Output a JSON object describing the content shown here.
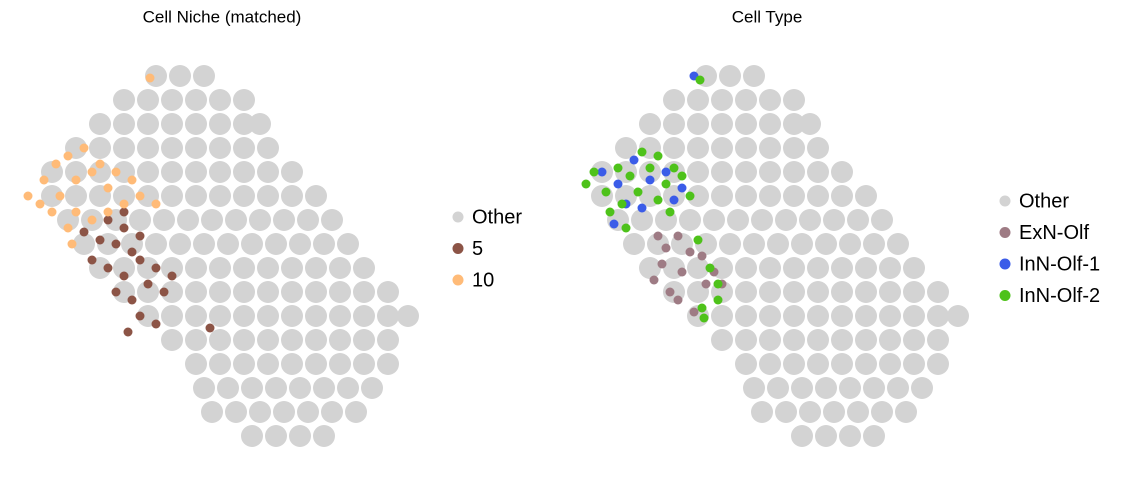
{
  "chart_data": [
    {
      "type": "scatter",
      "title": "Cell Niche (matched)",
      "xlim": [
        0,
        100
      ],
      "ylim": [
        0,
        104
      ],
      "series": [
        {
          "name": "Other",
          "color": "#d3d3d3",
          "x": [
            34,
            40,
            46,
            26,
            32,
            38,
            44,
            50,
            56,
            20,
            26,
            32,
            38,
            44,
            50,
            56,
            60,
            14,
            20,
            26,
            32,
            38,
            44,
            50,
            56,
            62,
            8,
            14,
            20,
            26,
            32,
            38,
            44,
            50,
            56,
            62,
            68,
            8,
            14,
            20,
            26,
            32,
            38,
            44,
            50,
            56,
            62,
            68,
            74,
            12,
            18,
            24,
            30,
            36,
            42,
            48,
            54,
            60,
            66,
            72,
            78,
            16,
            22,
            28,
            34,
            40,
            46,
            52,
            58,
            64,
            70,
            76,
            82,
            20,
            26,
            32,
            38,
            44,
            50,
            56,
            62,
            68,
            74,
            80,
            86,
            26,
            32,
            38,
            44,
            50,
            56,
            62,
            68,
            74,
            80,
            86,
            92,
            32,
            38,
            44,
            50,
            56,
            62,
            68,
            74,
            80,
            86,
            92,
            97,
            38,
            44,
            50,
            56,
            62,
            68,
            74,
            80,
            86,
            92,
            44,
            50,
            56,
            62,
            68,
            74,
            80,
            86,
            92,
            46,
            52,
            58,
            64,
            70,
            76,
            82,
            88,
            48,
            54,
            60,
            66,
            72,
            78,
            84,
            58,
            64,
            70,
            76
          ],
          "y": [
            96,
            96,
            96,
            90,
            90,
            90,
            90,
            90,
            90,
            84,
            84,
            84,
            84,
            84,
            84,
            84,
            84,
            78,
            78,
            78,
            78,
            78,
            78,
            78,
            78,
            78,
            72,
            72,
            72,
            72,
            72,
            72,
            72,
            72,
            72,
            72,
            72,
            66,
            66,
            66,
            66,
            66,
            66,
            66,
            66,
            66,
            66,
            66,
            66,
            60,
            60,
            60,
            60,
            60,
            60,
            60,
            60,
            60,
            60,
            60,
            60,
            54,
            54,
            54,
            54,
            54,
            54,
            54,
            54,
            54,
            54,
            54,
            54,
            48,
            48,
            48,
            48,
            48,
            48,
            48,
            48,
            48,
            48,
            48,
            48,
            42,
            42,
            42,
            42,
            42,
            42,
            42,
            42,
            42,
            42,
            42,
            42,
            36,
            36,
            36,
            36,
            36,
            36,
            36,
            36,
            36,
            36,
            36,
            36,
            30,
            30,
            30,
            30,
            30,
            30,
            30,
            30,
            30,
            30,
            24,
            24,
            24,
            24,
            24,
            24,
            24,
            24,
            24,
            18,
            18,
            18,
            18,
            18,
            18,
            18,
            18,
            12,
            12,
            12,
            12,
            12,
            12,
            12,
            6,
            6,
            6,
            6
          ]
        },
        {
          "name": "5",
          "color": "#8c5446",
          "x": [
            16,
            20,
            22,
            24,
            26,
            28,
            30,
            18,
            22,
            26,
            30,
            34,
            32,
            36,
            38,
            24,
            28,
            30,
            34,
            27,
            47.5,
            26
          ],
          "y": [
            57,
            55,
            60,
            54,
            58,
            52,
            56,
            50,
            48,
            46,
            50,
            48,
            44,
            42,
            46,
            42,
            40,
            36,
            34,
            32,
            33,
            62
          ]
        },
        {
          "name": "10",
          "color": "#ffbb78",
          "x": [
            2,
            6,
            10,
            14,
            18,
            22,
            26,
            30,
            12,
            16,
            20,
            24,
            28,
            14,
            18,
            22,
            12,
            34,
            8,
            13,
            32.5,
            5,
            9
          ],
          "y": [
            66,
            70,
            66,
            70,
            72,
            68,
            64,
            66,
            76,
            78,
            74,
            72,
            70,
            62,
            60,
            62,
            58,
            64,
            62,
            54,
            95.5,
            64,
            74
          ]
        }
      ]
    },
    {
      "type": "scatter",
      "title": "Cell Type",
      "xlim": [
        0,
        100
      ],
      "ylim": [
        0,
        104
      ],
      "series": [
        {
          "name": "Other",
          "color": "#d3d3d3",
          "x": [
            34,
            40,
            46,
            26,
            32,
            38,
            44,
            50,
            56,
            20,
            26,
            32,
            38,
            44,
            50,
            56,
            60,
            14,
            20,
            26,
            32,
            38,
            44,
            50,
            56,
            62,
            8,
            14,
            20,
            26,
            32,
            38,
            44,
            50,
            56,
            62,
            68,
            8,
            14,
            20,
            26,
            32,
            38,
            44,
            50,
            56,
            62,
            68,
            74,
            12,
            18,
            24,
            30,
            36,
            42,
            48,
            54,
            60,
            66,
            72,
            78,
            16,
            22,
            28,
            34,
            40,
            46,
            52,
            58,
            64,
            70,
            76,
            82,
            20,
            26,
            32,
            38,
            44,
            50,
            56,
            62,
            68,
            74,
            80,
            86,
            26,
            32,
            38,
            44,
            50,
            56,
            62,
            68,
            74,
            80,
            86,
            92,
            32,
            38,
            44,
            50,
            56,
            62,
            68,
            74,
            80,
            86,
            92,
            97,
            38,
            44,
            50,
            56,
            62,
            68,
            74,
            80,
            86,
            92,
            44,
            50,
            56,
            62,
            68,
            74,
            80,
            86,
            92,
            46,
            52,
            58,
            64,
            70,
            76,
            82,
            88,
            48,
            54,
            60,
            66,
            72,
            78,
            84,
            58,
            64,
            70,
            76
          ],
          "y": [
            96,
            96,
            96,
            90,
            90,
            90,
            90,
            90,
            90,
            84,
            84,
            84,
            84,
            84,
            84,
            84,
            84,
            78,
            78,
            78,
            78,
            78,
            78,
            78,
            78,
            78,
            72,
            72,
            72,
            72,
            72,
            72,
            72,
            72,
            72,
            72,
            72,
            66,
            66,
            66,
            66,
            66,
            66,
            66,
            66,
            66,
            66,
            66,
            66,
            60,
            60,
            60,
            60,
            60,
            60,
            60,
            60,
            60,
            60,
            60,
            60,
            54,
            54,
            54,
            54,
            54,
            54,
            54,
            54,
            54,
            54,
            54,
            54,
            48,
            48,
            48,
            48,
            48,
            48,
            48,
            48,
            48,
            48,
            48,
            48,
            42,
            42,
            42,
            42,
            42,
            42,
            42,
            42,
            42,
            42,
            42,
            42,
            36,
            36,
            36,
            36,
            36,
            36,
            36,
            36,
            36,
            36,
            36,
            36,
            30,
            30,
            30,
            30,
            30,
            30,
            30,
            30,
            30,
            30,
            24,
            24,
            24,
            24,
            24,
            24,
            24,
            24,
            24,
            18,
            18,
            18,
            18,
            18,
            18,
            18,
            18,
            12,
            12,
            12,
            12,
            12,
            12,
            12,
            6,
            6,
            6,
            6
          ]
        },
        {
          "name": "ExN-Olf",
          "color": "#9e7b84",
          "x": [
            22,
            24,
            27,
            30,
            33,
            36,
            38,
            23,
            21,
            25,
            27,
            31,
            28,
            34
          ],
          "y": [
            56,
            53,
            56,
            52,
            51,
            47,
            44,
            49,
            45,
            42,
            40,
            37,
            47,
            44
          ]
        },
        {
          "name": "InN-Olf-1",
          "color": "#3b5ce8",
          "x": [
            8,
            12,
            16,
            20,
            24,
            28,
            14,
            18,
            11,
            26,
            31
          ],
          "y": [
            72,
            69,
            75,
            70,
            72,
            68,
            64,
            63,
            59,
            65,
            96
          ]
        },
        {
          "name": "InN-Olf-2",
          "color": "#4ec21a",
          "x": [
            4,
            6,
            9,
            12,
            15,
            18,
            20,
            22,
            24,
            26,
            28,
            30,
            17,
            13,
            10,
            14,
            22,
            25,
            32,
            35,
            37,
            33.5,
            37,
            33,
            32.5
          ],
          "y": [
            69,
            72,
            67,
            73,
            71,
            77,
            73,
            76,
            69,
            73,
            71,
            66,
            67,
            64,
            62,
            58,
            65,
            62,
            55,
            48,
            40,
            35.5,
            44,
            38,
            95
          ]
        }
      ]
    }
  ]
}
